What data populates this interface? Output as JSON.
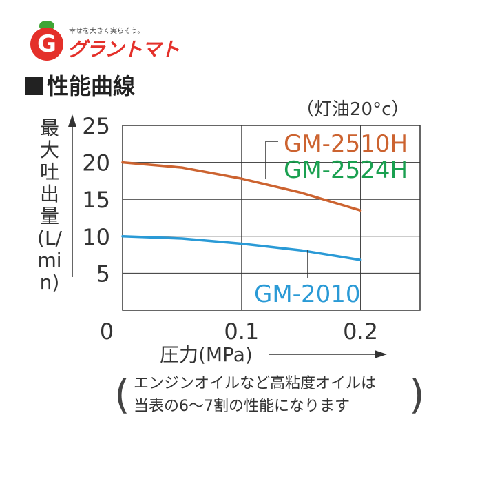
{
  "logo": {
    "tagline": "幸せを大きく実らそう。",
    "name": "グラントマト",
    "mark": "G"
  },
  "section_title": "性能曲線",
  "condition": "（灯油20°c）",
  "note": {
    "line1": "エンジンオイルなど高粘度オイルは",
    "line2": "当表の6〜7割の性能になります"
  },
  "colors": {
    "orange": "#cc6330",
    "green": "#1aa050",
    "blue": "#2a9ad6",
    "grid": "#333333"
  },
  "chart_data": {
    "type": "line",
    "title": "",
    "xlabel": "圧力(MPa)",
    "ylabel": "最大吐出量(L/min)",
    "xlim": [
      0,
      0.25
    ],
    "ylim": [
      0,
      25
    ],
    "x_ticks": [
      "0",
      "0.1",
      "0.2"
    ],
    "y_ticks": [
      "5",
      "10",
      "15",
      "20",
      "25"
    ],
    "grid": true,
    "series": [
      {
        "name": "GM-2510H",
        "label_extra": "GM-2524H",
        "color": "#cc6330",
        "x": [
          0,
          0.05,
          0.1,
          0.15,
          0.2
        ],
        "y": [
          20,
          19.3,
          17.8,
          15.9,
          13.5
        ]
      },
      {
        "name": "GM-2010",
        "color": "#2a9ad6",
        "x": [
          0,
          0.05,
          0.1,
          0.15,
          0.2
        ],
        "y": [
          10,
          9.7,
          9.0,
          8.1,
          6.8
        ]
      }
    ]
  }
}
